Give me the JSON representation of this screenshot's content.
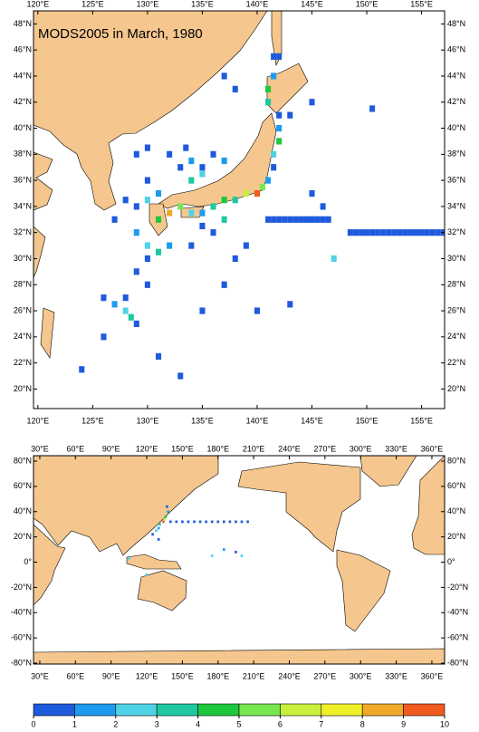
{
  "title": "MODS2005 in March, 1980",
  "colorbar": {
    "ticks": [
      0,
      1,
      2,
      3,
      4,
      5,
      6,
      7,
      8,
      9,
      10
    ],
    "colors": [
      "#1e5adc",
      "#1e9bf0",
      "#50d2e6",
      "#1ec8a0",
      "#1ec83c",
      "#78e650",
      "#c8f03c",
      "#f0f028",
      "#f0aa28",
      "#f05a1e"
    ]
  },
  "maps": [
    {
      "xlim": [
        119.6,
        157.1
      ],
      "ylim": [
        18.5,
        49
      ],
      "xticks": [
        {
          "value": 120,
          "label": "120°E"
        },
        {
          "value": 125,
          "label": "125°E"
        },
        {
          "value": 130,
          "label": "130°E"
        },
        {
          "value": 135,
          "label": "135°E"
        },
        {
          "value": 140,
          "label": "140°E"
        },
        {
          "value": 145,
          "label": "145°E"
        },
        {
          "value": 150,
          "label": "150°E"
        },
        {
          "value": 155,
          "label": "155°E"
        }
      ],
      "yticks": [
        {
          "value": 20,
          "label": "20°N"
        },
        {
          "value": 22,
          "label": "22°N"
        },
        {
          "value": 24,
          "label": "24°N"
        },
        {
          "value": 26,
          "label": "26°N"
        },
        {
          "value": 28,
          "label": "28°N"
        },
        {
          "value": 30,
          "label": "30°N"
        },
        {
          "value": 32,
          "label": "32°N"
        },
        {
          "value": 34,
          "label": "34°N"
        },
        {
          "value": 36,
          "label": "36°N"
        },
        {
          "value": 38,
          "label": "38°N"
        },
        {
          "value": 40,
          "label": "40°N"
        },
        {
          "value": 42,
          "label": "42°N"
        },
        {
          "value": 44,
          "label": "44°N"
        },
        {
          "value": 46,
          "label": "46°N"
        },
        {
          "value": 48,
          "label": "48°N"
        }
      ],
      "cell": [
        0.5,
        0.5
      ],
      "cells": {
        "lon": [
          148.5,
          149,
          149.5,
          150,
          150.5,
          151,
          151.5,
          152,
          152.5,
          153,
          153.5,
          154,
          154.5,
          155,
          155.5,
          156,
          156.5,
          157,
          141,
          141.5,
          142,
          142.5,
          143,
          143.5,
          144,
          144.5,
          145,
          145.5,
          146,
          146.5,
          131,
          132,
          133,
          134,
          135,
          136,
          137,
          138,
          139,
          140,
          140.5,
          141,
          141.5,
          141.5,
          142,
          142,
          142,
          141,
          141,
          141.5,
          142,
          141.5,
          133,
          134,
          135,
          136,
          137,
          134,
          135,
          133.5,
          130,
          131,
          129,
          130,
          128,
          127,
          129,
          130,
          131,
          132,
          130,
          129,
          130,
          128,
          127,
          128,
          128.5,
          129,
          126,
          126,
          131,
          124,
          133,
          135,
          137,
          138,
          139,
          140,
          143,
          147,
          145,
          146,
          150.5,
          145,
          143,
          138,
          137,
          132,
          130,
          129,
          136,
          134,
          137,
          135
        ],
        "lat": [
          32,
          32,
          32,
          32,
          32,
          32,
          32,
          32,
          32,
          32,
          32,
          32,
          32,
          32,
          32,
          32,
          32,
          32,
          33,
          33,
          33,
          33,
          33,
          33,
          33,
          33,
          33,
          33,
          33,
          33,
          33,
          33.5,
          34,
          33.5,
          33.5,
          34,
          34.5,
          34.5,
          35,
          35,
          35.5,
          36,
          37,
          38,
          39,
          40,
          41,
          42,
          43,
          44,
          45.5,
          45.5,
          37,
          37.5,
          37,
          38,
          37.5,
          36,
          36.5,
          38.5,
          36,
          35,
          34,
          34.5,
          34.5,
          33,
          32,
          31,
          30.5,
          31,
          30,
          29,
          28,
          27,
          26.5,
          26,
          25.5,
          25,
          27,
          24,
          22.5,
          21.5,
          21,
          26,
          28,
          30,
          31,
          26,
          26.5,
          30,
          35,
          34,
          41.5,
          42,
          41,
          43,
          44,
          38,
          38.5,
          38,
          32,
          31,
          33,
          32.5
        ],
        "value": [
          0.5,
          0.5,
          0.5,
          0.5,
          0.5,
          0.5,
          0.5,
          0.5,
          0.5,
          0.5,
          0.5,
          0.5,
          0.5,
          0.5,
          0.5,
          0.5,
          0.5,
          0.5,
          0.5,
          0.5,
          0.5,
          0.5,
          0.5,
          0.5,
          0.5,
          0.5,
          0.5,
          0.5,
          0.5,
          0.5,
          4.5,
          8.5,
          5.5,
          2.5,
          1.5,
          3.5,
          4.5,
          3.5,
          6.5,
          9.5,
          5.5,
          1.5,
          0.5,
          2.5,
          4.5,
          1.5,
          0.5,
          3.5,
          4.5,
          1.5,
          0.5,
          0.5,
          0.5,
          1.5,
          0.5,
          0.5,
          1.5,
          3.5,
          2.5,
          0.5,
          0.5,
          1.5,
          0.5,
          2.5,
          0.5,
          0.5,
          1.5,
          2.5,
          3.5,
          1.5,
          0.5,
          0.5,
          0.5,
          0.5,
          1.5,
          2.5,
          3.5,
          0.5,
          0.5,
          0.5,
          0.5,
          0.5,
          0.5,
          0.5,
          0.5,
          0.5,
          0.5,
          0.5,
          0.5,
          2.5,
          0.5,
          0.5,
          0.5,
          0.5,
          0.5,
          0.5,
          0.5,
          0.5,
          0.5,
          0.5,
          0.5,
          0.5,
          3.5,
          0.5
        ]
      }
    },
    {
      "xlim": [
        24.7,
        370.7
      ],
      "ylim": [
        -80.7,
        84.3
      ],
      "xticks": [
        {
          "value": 30,
          "label": "30°E"
        },
        {
          "value": 60,
          "label": "60°E"
        },
        {
          "value": 90,
          "label": "90°E"
        },
        {
          "value": 120,
          "label": "120°E"
        },
        {
          "value": 150,
          "label": "150°E"
        },
        {
          "value": 180,
          "label": "180°E"
        },
        {
          "value": 210,
          "label": "210°E"
        },
        {
          "value": 240,
          "label": "240°E"
        },
        {
          "value": 270,
          "label": "270°E"
        },
        {
          "value": 300,
          "label": "300°E"
        },
        {
          "value": 330,
          "label": "330°E"
        },
        {
          "value": 360,
          "label": "360°E"
        }
      ],
      "yticks": [
        {
          "value": -80,
          "label": "-80°N"
        },
        {
          "value": -60,
          "label": "-60°N"
        },
        {
          "value": -40,
          "label": "-40°N"
        },
        {
          "value": -20,
          "label": "-20°N"
        },
        {
          "value": 0,
          "label": "0°"
        },
        {
          "value": 20,
          "label": "20°N"
        },
        {
          "value": 40,
          "label": "40°N"
        },
        {
          "value": 60,
          "label": "60°N"
        },
        {
          "value": 80,
          "label": "80°N"
        }
      ],
      "cell": [
        2,
        2
      ],
      "cells": {
        "lon": [
          134,
          135,
          136,
          138,
          137,
          131,
          130,
          128,
          140,
          145,
          150,
          155,
          160,
          165,
          170,
          175,
          180,
          185,
          190,
          195,
          200,
          205,
          175,
          185,
          195,
          200,
          105,
          120,
          130,
          125
        ],
        "lat": [
          32,
          34,
          36,
          40,
          44,
          30,
          27,
          25,
          32,
          32,
          32,
          32,
          32,
          32,
          32,
          32,
          32,
          32,
          32,
          32,
          32,
          32,
          5,
          10,
          8,
          5,
          3,
          -10,
          18,
          22
        ],
        "value": [
          9.5,
          6.5,
          4.5,
          1.5,
          0.5,
          3.5,
          1.5,
          2.5,
          0.5,
          0.5,
          0.5,
          0.5,
          0.5,
          0.5,
          0.5,
          0.5,
          0.5,
          0.5,
          0.5,
          0.5,
          0.5,
          0.5,
          2.5,
          1.5,
          0.5,
          2.5,
          2.5,
          2.5,
          0.5,
          0.5
        ]
      }
    }
  ]
}
